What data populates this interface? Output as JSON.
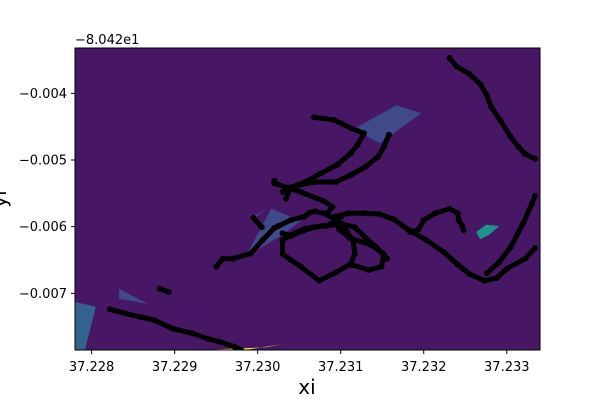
{
  "chart_data": {
    "type": "scatter",
    "title": "",
    "xlabel": "xi",
    "ylabel": "yi",
    "y_offset_label": "−8.042e1",
    "xlim": [
      37.2278,
      37.2334
    ],
    "ylim": [
      -0.00785,
      -0.00332
    ],
    "xticks": [
      37.228,
      37.229,
      37.23,
      37.231,
      37.232,
      37.233
    ],
    "xtick_labels": [
      "37.228",
      "37.229",
      "37.230",
      "37.231",
      "37.232",
      "37.233"
    ],
    "yticks": [
      -0.004,
      -0.005,
      -0.006,
      -0.007
    ],
    "ytick_labels": [
      "−0.004",
      "−0.005",
      "−0.006",
      "−0.007"
    ],
    "grid": false,
    "background_color": "#471665",
    "regions": [
      {
        "color": "#3e4a89",
        "points": [
          [
            37.23115,
            -0.00454
          ],
          [
            37.23167,
            -0.00418
          ],
          [
            37.23197,
            -0.0043
          ],
          [
            37.23147,
            -0.00475
          ]
        ]
      },
      {
        "color": "#3e4a89",
        "points": [
          [
            37.22985,
            -0.00646
          ],
          [
            37.23016,
            -0.00573
          ],
          [
            37.23052,
            -0.00591
          ],
          [
            37.23029,
            -0.00613
          ]
        ]
      },
      {
        "color": "#3e4a89",
        "points": [
          [
            37.22993,
            -0.0059
          ],
          [
            37.23011,
            -0.00573
          ],
          [
            37.22997,
            -0.00583
          ]
        ]
      },
      {
        "color": "#3e4a89",
        "points": [
          [
            37.22833,
            -0.00693
          ],
          [
            37.22868,
            -0.00716
          ],
          [
            37.22833,
            -0.00708
          ]
        ]
      },
      {
        "color": "#33638d",
        "points": [
          [
            37.2278,
            -0.00785
          ],
          [
            37.2278,
            -0.00713
          ],
          [
            37.22805,
            -0.0072
          ],
          [
            37.22792,
            -0.00785
          ]
        ]
      },
      {
        "color": "#21918c",
        "points": [
          [
            37.23263,
            -0.00608
          ],
          [
            37.23275,
            -0.00597
          ],
          [
            37.23291,
            -0.00599
          ],
          [
            37.23278,
            -0.00613
          ],
          [
            37.23268,
            -0.00619
          ]
        ]
      },
      {
        "color": "#fde725",
        "points": [
          [
            37.22935,
            -0.00785
          ],
          [
            37.2301,
            -0.00781
          ],
          [
            37.2303,
            -0.00776
          ],
          [
            37.22985,
            -0.00785
          ]
        ]
      }
    ],
    "series": [
      {
        "color": "#000000",
        "x": [
          37.2295,
          37.22958,
          37.2297,
          37.22992,
          37.23006,
          37.2302,
          37.23025,
          37.2304,
          37.23056,
          37.23062,
          37.23069,
          37.2308,
          37.23093,
          37.23102,
          37.23108,
          37.23115,
          37.23117,
          37.23112,
          37.23095,
          37.23074,
          37.23052,
          37.2304,
          37.2303,
          37.2303,
          37.23041,
          37.23057,
          37.23078,
          37.23102,
          37.23117,
          37.23131,
          37.23143,
          37.23156
        ],
        "y": [
          -0.0066,
          -0.00648,
          -0.00648,
          -0.0064,
          -0.0062,
          -0.00602,
          -0.00599,
          -0.0059,
          -0.00585,
          -0.00579,
          -0.00577,
          -0.0058,
          -0.00589,
          -0.006,
          -0.00608,
          -0.00621,
          -0.0064,
          -0.00656,
          -0.00668,
          -0.00681,
          -0.0066,
          -0.0065,
          -0.00641,
          -0.0062,
          -0.00612,
          -0.00603,
          -0.00599,
          -0.00596,
          -0.00601,
          -0.00618,
          -0.00631,
          -0.00648
        ]
      },
      {
        "color": "#000000",
        "x": [
          37.22822,
          37.2284,
          37.2286,
          37.22875,
          37.22898,
          37.22921,
          37.2294,
          37.22955,
          37.22972,
          37.2298
        ],
        "y": [
          -0.00724,
          -0.0073,
          -0.00736,
          -0.0074,
          -0.00753,
          -0.0076,
          -0.00768,
          -0.00773,
          -0.0078,
          -0.00785
        ]
      },
      {
        "color": "#000000",
        "x": [
          37.2303,
          37.2304,
          37.23055,
          37.23068,
          37.23082,
          37.23093,
          37.231
        ],
        "y": [
          -0.0061,
          -0.00614,
          -0.00606,
          -0.00601,
          -0.00599,
          -0.00592,
          -0.00586
        ]
      },
      {
        "color": "#000000",
        "x": [
          37.22995,
          37.23005
        ],
        "y": [
          -0.00587,
          -0.00601
        ]
      },
      {
        "color": "#000000",
        "x": [
          37.22882,
          37.22893
        ],
        "y": [
          -0.00693,
          -0.00698
        ]
      },
      {
        "color": "#000000",
        "x": [
          37.23084,
          37.2309,
          37.2308,
          37.23052,
          37.2302,
          37.2302
        ],
        "y": [
          -0.0058,
          -0.0057,
          -0.00562,
          -0.00548,
          -0.00535,
          -0.00531
        ]
      },
      {
        "color": "#000000",
        "x": [
          37.23034,
          37.2304,
          37.23059,
          37.23076,
          37.23096,
          37.23112,
          37.2312,
          37.23128,
          37.23112,
          37.23092,
          37.23068
        ],
        "y": [
          -0.00558,
          -0.00541,
          -0.00532,
          -0.0052,
          -0.00507,
          -0.0049,
          -0.00478,
          -0.0046,
          -0.00452,
          -0.0044,
          -0.00436
        ]
      },
      {
        "color": "#000000",
        "x": [
          37.2303,
          37.23049,
          37.23068,
          37.23094,
          37.23113,
          37.2313,
          37.23145,
          37.23152,
          37.23158
        ],
        "y": [
          -0.00548,
          -0.00538,
          -0.00533,
          -0.00533,
          -0.00522,
          -0.0051,
          -0.00495,
          -0.0048,
          -0.00462
        ]
      },
      {
        "color": "#000000",
        "x": [
          37.23113,
          37.23134,
          37.23149,
          37.23152,
          37.23136,
          37.23111,
          37.23098,
          37.23093,
          37.23109,
          37.23128,
          37.23146,
          37.23164,
          37.23182,
          37.23203,
          37.23224,
          37.2324,
          37.23255,
          37.23273,
          37.23288,
          37.233,
          37.23322,
          37.23334
        ],
        "y": [
          -0.00657,
          -0.00665,
          -0.0066,
          -0.00641,
          -0.00627,
          -0.00617,
          -0.00604,
          -0.00585,
          -0.0058,
          -0.0058,
          -0.00581,
          -0.00589,
          -0.00605,
          -0.0062,
          -0.00638,
          -0.00656,
          -0.00671,
          -0.00681,
          -0.00677,
          -0.00663,
          -0.00648,
          -0.00632
        ]
      },
      {
        "color": "#000000",
        "x": [
          37.23184,
          37.23194,
          37.232,
          37.23214,
          37.23231,
          37.23241,
          37.23242,
          37.23246,
          37.23248
        ],
        "y": [
          -0.00608,
          -0.00604,
          -0.0059,
          -0.0058,
          -0.00573,
          -0.0058,
          -0.0059,
          -0.00598,
          -0.00605
        ]
      },
      {
        "color": "#000000",
        "x": [
          37.23231,
          37.2324,
          37.23255,
          37.23268,
          37.23276,
          37.23281,
          37.23292,
          37.23304,
          37.23314,
          37.23322,
          37.23334
        ],
        "y": [
          -0.00347,
          -0.0036,
          -0.00371,
          -0.00386,
          -0.00403,
          -0.0042,
          -0.0044,
          -0.00464,
          -0.0048,
          -0.00491,
          -0.00498
        ]
      },
      {
        "color": "#000000",
        "x": [
          37.23276,
          37.23291,
          37.23305,
          37.2332,
          37.2333,
          37.23334
        ],
        "y": [
          -0.0067,
          -0.00653,
          -0.0063,
          -0.00594,
          -0.00566,
          -0.00554
        ]
      }
    ]
  }
}
